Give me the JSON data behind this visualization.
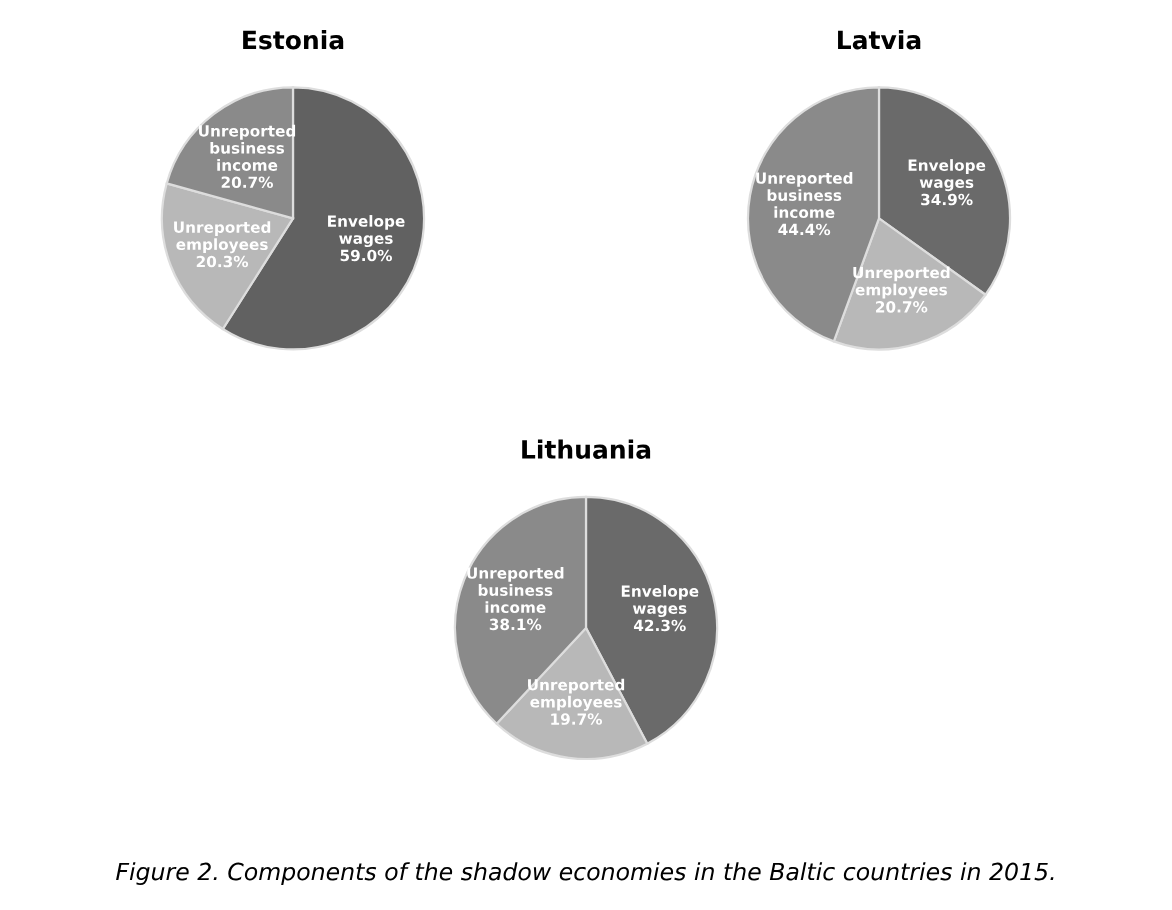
{
  "chart_data": [
    {
      "type": "pie",
      "title": "Estonia",
      "categories": [
        "Envelope wages",
        "Unreported employees",
        "Unreported business income"
      ],
      "values": [
        59.0,
        20.3,
        20.7
      ],
      "value_labels": [
        "59.0%",
        "20.3%",
        "20.7%"
      ],
      "colors": [
        "#616161",
        "#b8b8b8",
        "#8a8a8a"
      ]
    },
    {
      "type": "pie",
      "title": "Latvia",
      "categories": [
        "Envelope wages",
        "Unreported employees",
        "Unreported business income"
      ],
      "values": [
        34.9,
        20.7,
        44.4
      ],
      "value_labels": [
        "34.9%",
        "20.7%",
        "44.4%"
      ],
      "colors": [
        "#6a6a6a",
        "#b8b8b8",
        "#8a8a8a"
      ]
    },
    {
      "type": "pie",
      "title": "Lithuania",
      "categories": [
        "Envelope wages",
        "Unreported employees",
        "Unreported business income"
      ],
      "values": [
        42.3,
        19.7,
        38.1
      ],
      "value_labels": [
        "42.3%",
        "19.7%",
        "38.1%"
      ],
      "colors": [
        "#6a6a6a",
        "#b8b8b8",
        "#8a8a8a"
      ],
      "annotations": [
        "Figure 2. Components of the shadow economies in the Baltic countries in 2015."
      ]
    }
  ]
}
